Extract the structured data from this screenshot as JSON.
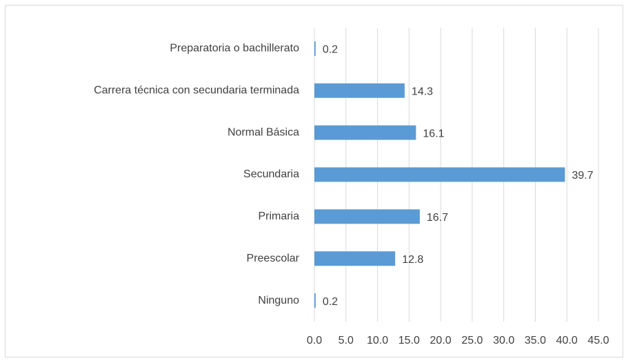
{
  "chart_data": {
    "type": "bar",
    "orientation": "horizontal",
    "categories": [
      "Preparatoria o bachillerato",
      "Carrera técnica con secundaria terminada",
      "Normal Básica",
      "Secundaria",
      "Primaria",
      "Preescolar",
      "Ninguno"
    ],
    "values": [
      0.2,
      14.3,
      16.1,
      39.7,
      16.7,
      12.8,
      0.2
    ],
    "color": "#5b9bd5",
    "xlim": [
      0,
      45
    ],
    "xticks": [
      {
        "value": 0,
        "label": "0.0"
      },
      {
        "value": 5,
        "label": "5.0"
      },
      {
        "value": 10,
        "label": "10.0"
      },
      {
        "value": 15,
        "label": "15.0"
      },
      {
        "value": 20,
        "label": "20.0"
      },
      {
        "value": 25,
        "label": "25.0"
      },
      {
        "value": 30,
        "label": "30.0"
      },
      {
        "value": 35,
        "label": "35.0"
      },
      {
        "value": 40,
        "label": "40.0"
      },
      {
        "value": 45,
        "label": "45.0"
      }
    ],
    "grid": true
  }
}
